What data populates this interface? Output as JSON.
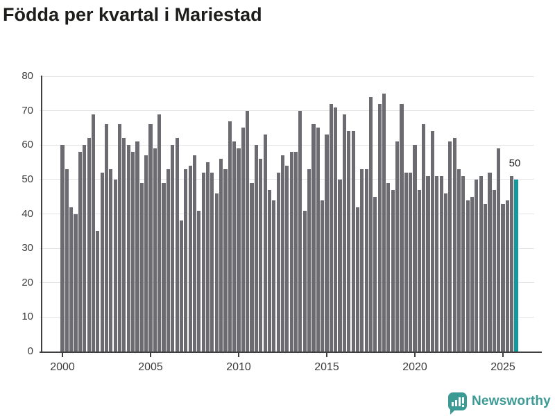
{
  "title": "Födda per kvartal i Mariestad",
  "annotation": {
    "label": "50"
  },
  "logo": {
    "text": "Newsworthy",
    "icon": "speech-bubble-bar-chart",
    "color": "#3b9a94"
  },
  "colors": {
    "bar": "#6b6b71",
    "highlight": "#12999e",
    "grid": "#e4e4e4",
    "axis": "#3f3f3f",
    "title_text": "#1d1d1b",
    "tick_text": "#3c3c3c"
  },
  "chart_data": {
    "type": "bar",
    "title": "Födda per kvartal i Mariestad",
    "x_unit": "quarter",
    "x_start": "2000 Q1",
    "x_end": "2025 Q4",
    "values": [
      60,
      53,
      42,
      40,
      58,
      60,
      62,
      69,
      35,
      52,
      66,
      53,
      50,
      66,
      62,
      60,
      58,
      61,
      49,
      57,
      66,
      59,
      69,
      49,
      53,
      60,
      62,
      38,
      53,
      54,
      57,
      41,
      52,
      55,
      52,
      46,
      56,
      53,
      67,
      61,
      59,
      65,
      70,
      49,
      60,
      56,
      63,
      47,
      44,
      52,
      57,
      54,
      58,
      58,
      70,
      41,
      53,
      66,
      65,
      44,
      63,
      72,
      71,
      50,
      69,
      64,
      64,
      42,
      53,
      53,
      74,
      45,
      72,
      75,
      49,
      47,
      61,
      72,
      52,
      52,
      60,
      47,
      66,
      51,
      64,
      51,
      51,
      46,
      61,
      62,
      53,
      51,
      44,
      45,
      50,
      51,
      43,
      52,
      47,
      59,
      43,
      44,
      51,
      50
    ],
    "highlight": {
      "index": 103,
      "value": 50,
      "label": "50"
    },
    "ylim": [
      0,
      80
    ],
    "yticks": [
      0,
      10,
      20,
      30,
      40,
      50,
      60,
      70,
      80
    ],
    "xticks": [
      {
        "index": 0,
        "label": "2000"
      },
      {
        "index": 20,
        "label": "2005"
      },
      {
        "index": 40,
        "label": "2010"
      },
      {
        "index": 60,
        "label": "2015"
      },
      {
        "index": 80,
        "label": "2020"
      },
      {
        "index": 100,
        "label": "2025"
      }
    ],
    "grid": true,
    "legend": false
  }
}
